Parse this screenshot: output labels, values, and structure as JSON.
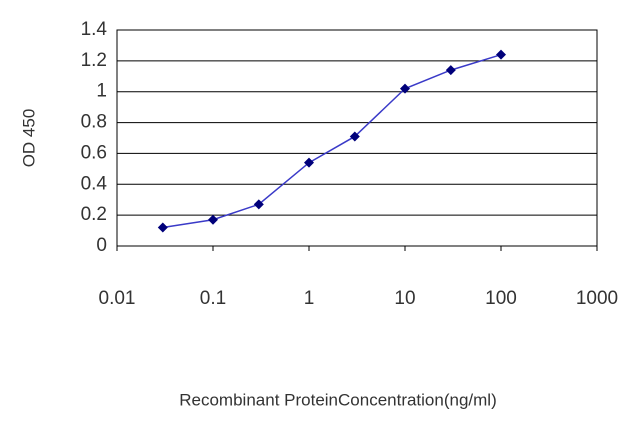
{
  "chart_data": {
    "type": "line",
    "x": [
      0.03,
      0.1,
      0.3,
      1,
      3,
      10,
      30,
      100
    ],
    "series": [
      {
        "color": "#3a3ac8",
        "marker_color": "#00007a",
        "values": [
          0.12,
          0.17,
          0.27,
          0.54,
          0.71,
          1.02,
          1.14,
          1.24
        ]
      }
    ],
    "xscale": "log",
    "xlim": [
      0.01,
      1000
    ],
    "xticks": [
      0.01,
      0.1,
      1,
      10,
      100,
      1000
    ],
    "ylim": [
      0,
      1.4
    ],
    "yticks": [
      0,
      0.2,
      0.4,
      0.6,
      0.8,
      1,
      1.2,
      1.4
    ],
    "grid": true,
    "xlabel": "Recombinant ProteinConcentration(ng/ml)",
    "ylabel": "OD 450"
  }
}
